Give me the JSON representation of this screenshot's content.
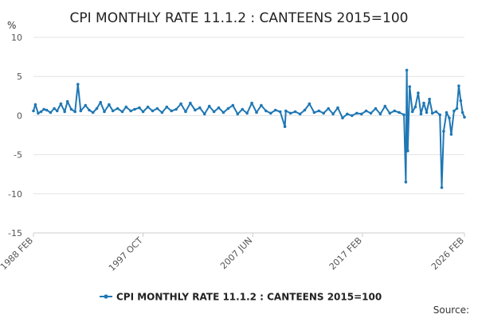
{
  "chart_data": {
    "type": "line",
    "title": "CPI MONTHLY RATE 11.1.2 : CANTEENS 2015=100",
    "ylabel": "%",
    "xlabel": "",
    "ylim": [
      -15,
      10
    ],
    "yticks": [
      10,
      5,
      0,
      -5,
      -10,
      -15
    ],
    "xlim": [
      "1988-02",
      "2026-02"
    ],
    "xticks": [
      {
        "label": "1988 FEB",
        "date": "1988-02"
      },
      {
        "label": "1997 OCT",
        "date": "1997-10"
      },
      {
        "label": "2007 JUN",
        "date": "2007-06"
      },
      {
        "label": "2017 FEB",
        "date": "2017-02"
      },
      {
        "label": "2026 FEB",
        "date": "2026-02"
      }
    ],
    "grid": true,
    "legend_position": "bottom",
    "color": "#1f77b4",
    "source_label": "Source:",
    "series": [
      {
        "name": "CPI MONTHLY RATE 11.1.2 : CANTEENS 2015=100",
        "points": [
          [
            "1988-02",
            0.6
          ],
          [
            "1988-04",
            1.4
          ],
          [
            "1988-07",
            0.3
          ],
          [
            "1988-10",
            0.5
          ],
          [
            "1989-01",
            0.8
          ],
          [
            "1989-04",
            0.7
          ],
          [
            "1989-08",
            0.4
          ],
          [
            "1989-12",
            0.9
          ],
          [
            "1990-03",
            0.6
          ],
          [
            "1990-07",
            1.5
          ],
          [
            "1990-11",
            0.5
          ],
          [
            "1991-02",
            1.8
          ],
          [
            "1991-06",
            0.8
          ],
          [
            "1991-10",
            0.5
          ],
          [
            "1992-01",
            4.0
          ],
          [
            "1992-04",
            0.6
          ],
          [
            "1992-09",
            1.3
          ],
          [
            "1993-01",
            0.7
          ],
          [
            "1993-05",
            0.4
          ],
          [
            "1993-09",
            0.9
          ],
          [
            "1994-01",
            1.7
          ],
          [
            "1994-05",
            0.5
          ],
          [
            "1994-10",
            1.4
          ],
          [
            "1995-02",
            0.6
          ],
          [
            "1995-07",
            0.9
          ],
          [
            "1995-12",
            0.5
          ],
          [
            "1996-04",
            1.1
          ],
          [
            "1996-09",
            0.6
          ],
          [
            "1997-01",
            0.8
          ],
          [
            "1997-06",
            1.0
          ],
          [
            "1997-10",
            0.5
          ],
          [
            "1998-03",
            1.1
          ],
          [
            "1998-08",
            0.6
          ],
          [
            "1999-01",
            0.9
          ],
          [
            "1999-06",
            0.4
          ],
          [
            "1999-11",
            1.1
          ],
          [
            "2000-04",
            0.6
          ],
          [
            "2000-09",
            0.8
          ],
          [
            "2001-02",
            1.5
          ],
          [
            "2001-07",
            0.5
          ],
          [
            "2001-12",
            1.6
          ],
          [
            "2002-05",
            0.7
          ],
          [
            "2002-10",
            1.0
          ],
          [
            "2003-03",
            0.2
          ],
          [
            "2003-08",
            1.2
          ],
          [
            "2004-01",
            0.5
          ],
          [
            "2004-06",
            1.0
          ],
          [
            "2004-11",
            0.4
          ],
          [
            "2005-04",
            0.9
          ],
          [
            "2005-09",
            1.3
          ],
          [
            "2006-02",
            0.2
          ],
          [
            "2006-07",
            0.8
          ],
          [
            "2006-12",
            0.3
          ],
          [
            "2007-05",
            1.6
          ],
          [
            "2007-10",
            0.4
          ],
          [
            "2008-03",
            1.3
          ],
          [
            "2008-08",
            0.6
          ],
          [
            "2009-01",
            0.3
          ],
          [
            "2009-06",
            0.7
          ],
          [
            "2009-11",
            0.5
          ],
          [
            "2010-04",
            -1.4
          ],
          [
            "2010-05",
            0.6
          ],
          [
            "2010-10",
            0.3
          ],
          [
            "2011-03",
            0.5
          ],
          [
            "2011-08",
            0.2
          ],
          [
            "2012-01",
            0.7
          ],
          [
            "2012-06",
            1.5
          ],
          [
            "2012-11",
            0.4
          ],
          [
            "2013-04",
            0.6
          ],
          [
            "2013-09",
            0.3
          ],
          [
            "2014-02",
            0.9
          ],
          [
            "2014-07",
            0.2
          ],
          [
            "2014-12",
            1.0
          ],
          [
            "2015-05",
            -0.3
          ],
          [
            "2015-10",
            0.2
          ],
          [
            "2016-03",
            0.0
          ],
          [
            "2016-08",
            0.3
          ],
          [
            "2017-01",
            0.2
          ],
          [
            "2017-06",
            0.6
          ],
          [
            "2017-11",
            0.3
          ],
          [
            "2018-04",
            0.9
          ],
          [
            "2018-09",
            0.2
          ],
          [
            "2019-02",
            1.2
          ],
          [
            "2019-07",
            0.3
          ],
          [
            "2019-12",
            0.6
          ],
          [
            "2020-05",
            0.4
          ],
          [
            "2020-10",
            0.1
          ],
          [
            "2020-12",
            -8.5
          ],
          [
            "2021-01",
            5.8
          ],
          [
            "2021-02",
            -4.5
          ],
          [
            "2021-04",
            3.7
          ],
          [
            "2021-07",
            0.5
          ],
          [
            "2021-10",
            1.1
          ],
          [
            "2022-01",
            2.9
          ],
          [
            "2022-04",
            0.2
          ],
          [
            "2022-07",
            1.6
          ],
          [
            "2022-10",
            0.4
          ],
          [
            "2023-01",
            2.1
          ],
          [
            "2023-04",
            0.3
          ],
          [
            "2023-08",
            0.5
          ],
          [
            "2023-12",
            0.1
          ],
          [
            "2024-02",
            -9.2
          ],
          [
            "2024-04",
            -2.0
          ],
          [
            "2024-07",
            0.4
          ],
          [
            "2024-10",
            -0.3
          ],
          [
            "2024-12",
            -2.4
          ],
          [
            "2025-03",
            0.6
          ],
          [
            "2025-06",
            0.9
          ],
          [
            "2025-08",
            3.8
          ],
          [
            "2025-10",
            1.9
          ],
          [
            "2025-12",
            0.4
          ],
          [
            "2026-02",
            -0.2
          ]
        ]
      }
    ]
  }
}
